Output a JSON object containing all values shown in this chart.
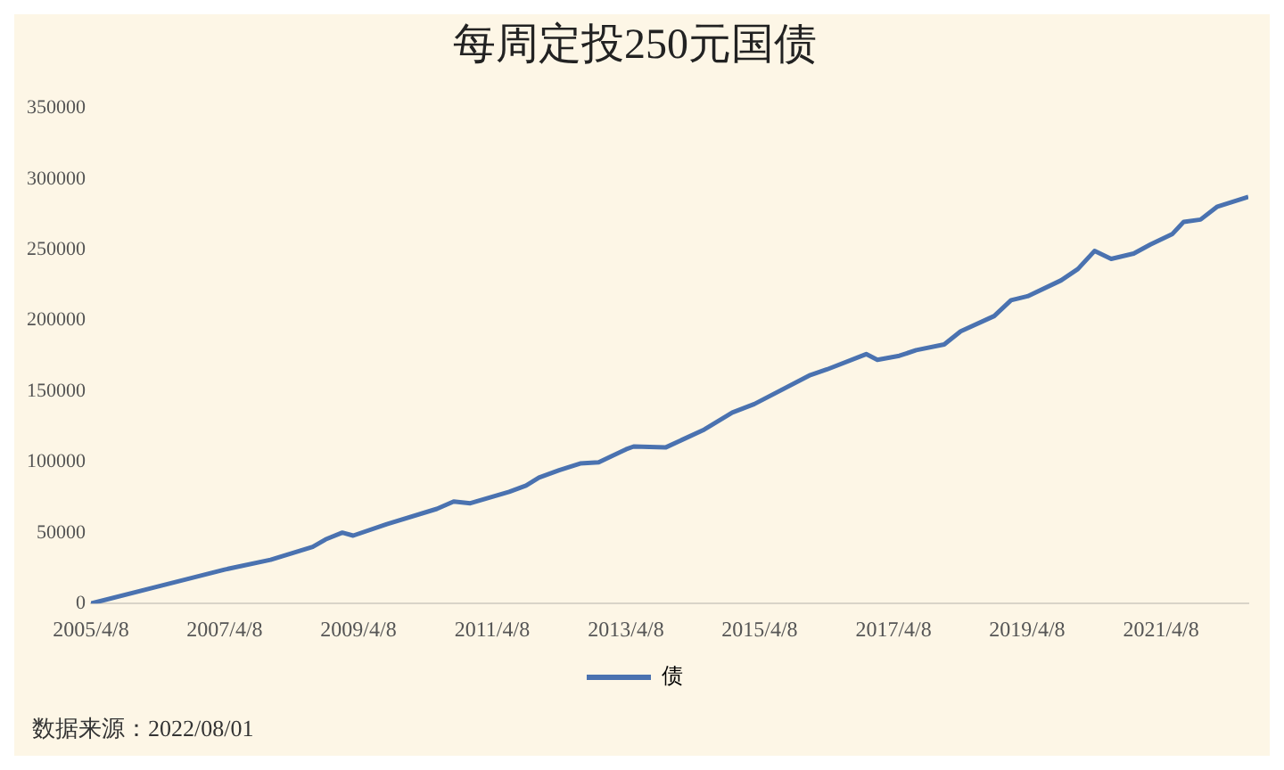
{
  "chart_data": {
    "type": "line",
    "title": "每周定投250元国债",
    "x": [
      "2005-04-08",
      "2006-04-08",
      "2007-04-08",
      "2007-12-15",
      "2008-08-01",
      "2008-10-10",
      "2009-01-10",
      "2009-03-10",
      "2009-09-10",
      "2010-06-10",
      "2010-09-10",
      "2010-12-10",
      "2011-07-10",
      "2011-10-10",
      "2011-12-20",
      "2012-04-08",
      "2012-08-01",
      "2012-11-10",
      "2013-04-08",
      "2013-05-20",
      "2013-11-10",
      "2014-06-10",
      "2014-11-10",
      "2015-03-10",
      "2016-01-10",
      "2016-04-10",
      "2016-11-10",
      "2017-01-10",
      "2017-05-10",
      "2017-08-10",
      "2018-01-10",
      "2018-04-10",
      "2018-10-10",
      "2019-01-10",
      "2019-04-10",
      "2019-10-10",
      "2020-01-10",
      "2020-04-10",
      "2020-07-10",
      "2020-11-10",
      "2021-02-10",
      "2021-06-10",
      "2021-08-10",
      "2021-11-10",
      "2022-02-10",
      "2022-07-29"
    ],
    "series": [
      {
        "name": "债",
        "color": "#4a72b0",
        "values": [
          0,
          12000,
          24000,
          30900,
          40000,
          45300,
          50100,
          48000,
          56100,
          66900,
          72100,
          70900,
          78900,
          83300,
          89000,
          94200,
          99000,
          99800,
          109000,
          111000,
          110300,
          123000,
          135000,
          141000,
          161500,
          165500,
          176300,
          172300,
          175100,
          179100,
          183100,
          192400,
          203200,
          214400,
          217200,
          228400,
          236400,
          249200,
          243600,
          247400,
          253800,
          261300,
          269800,
          271400,
          280600,
          287400
        ]
      }
    ],
    "xlim": [
      "2005-04-08",
      "2022-07-29"
    ],
    "xticks": [
      {
        "value": "2005-04-08",
        "label": "2005/4/8"
      },
      {
        "value": "2007-04-08",
        "label": "2007/4/8"
      },
      {
        "value": "2009-04-08",
        "label": "2009/4/8"
      },
      {
        "value": "2011-04-08",
        "label": "2011/4/8"
      },
      {
        "value": "2013-04-08",
        "label": "2013/4/8"
      },
      {
        "value": "2015-04-08",
        "label": "2015/4/8"
      },
      {
        "value": "2017-04-08",
        "label": "2017/4/8"
      },
      {
        "value": "2019-04-08",
        "label": "2019/4/8"
      },
      {
        "value": "2021-04-08",
        "label": "2021/4/8"
      }
    ],
    "ylim": [
      0,
      350000
    ],
    "yticks": [
      0,
      50000,
      100000,
      150000,
      200000,
      250000,
      300000,
      350000
    ],
    "grid": false,
    "legend": "bottom",
    "marker": "none",
    "line_style": "solid",
    "annotations": [
      "数据来源：2022/08/01"
    ]
  }
}
